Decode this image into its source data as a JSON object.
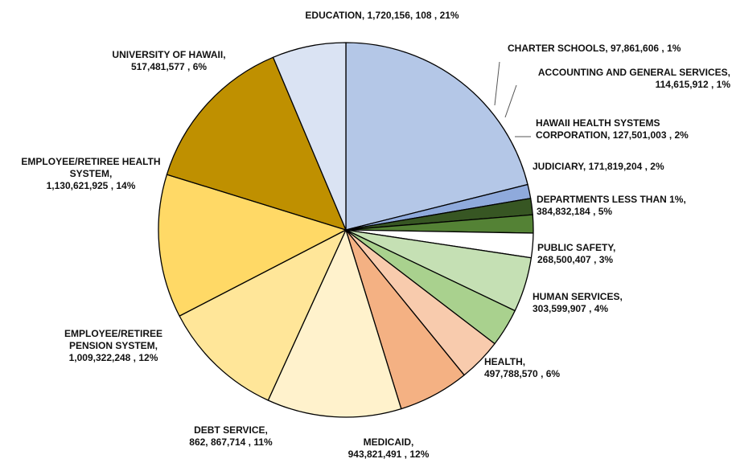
{
  "chart_data": {
    "type": "pie",
    "slices": [
      {
        "name": "EDUCATION",
        "value": 1720156108,
        "percent": 21,
        "color": "#b4c7e7",
        "label_lines": [
          "EDUCATION, 1,720,156, 108 , 21%"
        ]
      },
      {
        "name": "CHARTER SCHOOLS",
        "value": 97861606,
        "percent": 1,
        "color": "#8faadc",
        "label_lines": [
          "CHARTER SCHOOLS, 97,861,606 , 1%"
        ]
      },
      {
        "name": "ACCOUNTING AND GENERAL SERVICES",
        "value": 114615912,
        "percent": 1,
        "color": "#375623",
        "label_lines": [
          "ACCOUNTING AND GENERAL SERVICES,",
          "114,615,912 , 1%"
        ]
      },
      {
        "name": "HAWAII HEALTH SYSTEMS CORPORATION",
        "value": 127501003,
        "percent": 2,
        "color": "#548235",
        "label_lines": [
          "HAWAII HEALTH SYSTEMS",
          "CORPORATION, 127,501,003 , 2%"
        ]
      },
      {
        "name": "JUDICIARY",
        "value": 171819204,
        "percent": 2,
        "color": "#ffffff",
        "label_lines": [
          "JUDICIARY, 171,819,204 , 2%"
        ]
      },
      {
        "name": "DEPARTMENTS LESS THAN 1%",
        "value": 384832184,
        "percent": 5,
        "color": "#c5e0b4",
        "label_lines": [
          "DEPARTMENTS LESS THAN 1%,",
          "384,832,184 , 5%"
        ]
      },
      {
        "name": "PUBLIC SAFETY",
        "value": 268500407,
        "percent": 3,
        "color": "#a9d18e",
        "label_lines": [
          "PUBLIC SAFETY,",
          "268,500,407 , 3%"
        ]
      },
      {
        "name": "HUMAN SERVICES",
        "value": 303599907,
        "percent": 4,
        "color": "#f8cbad",
        "label_lines": [
          "HUMAN SERVICES,",
          "303,599,907 , 4%"
        ]
      },
      {
        "name": "HEALTH",
        "value": 497788570,
        "percent": 6,
        "color": "#f4b183",
        "label_lines": [
          "HEALTH,",
          "497,788,570 , 6%"
        ]
      },
      {
        "name": "MEDICAID",
        "value": 943821491,
        "percent": 12,
        "color": "#fff2cc",
        "label_lines": [
          "MEDICAID,",
          "943,821,491 , 12%"
        ]
      },
      {
        "name": "DEBT SERVICE",
        "value": 862867714,
        "percent": 11,
        "color": "#ffe699",
        "label_lines": [
          "DEBT SERVICE,",
          "862, 867,714 , 11%"
        ]
      },
      {
        "name": "EMPLOYEE/RETIREE PENSION SYSTEM",
        "value": 1009322248,
        "percent": 12,
        "color": "#ffd966",
        "label_lines": [
          "EMPLOYEE/RETIREE",
          "PENSION SYSTEM,",
          "1,009,322,248 , 12%"
        ]
      },
      {
        "name": "EMPLOYEE/RETIREE HEALTH SYSTEM",
        "value": 1130621925,
        "percent": 14,
        "color": "#bf9000",
        "label_lines": [
          "EMPLOYEE/RETIREE HEALTH",
          "SYSTEM,",
          "1,130,621,925 , 14%"
        ]
      },
      {
        "name": "UNIVERSITY OF HAWAII",
        "value": 517481577,
        "percent": 6,
        "color": "#dae3f3",
        "label_lines": [
          "UNIVERSITY OF HAWAII,",
          "517,481,577 , 6%"
        ]
      }
    ],
    "start_angle_deg": 0,
    "direction": "clockwise",
    "outline_color": "#000000"
  }
}
